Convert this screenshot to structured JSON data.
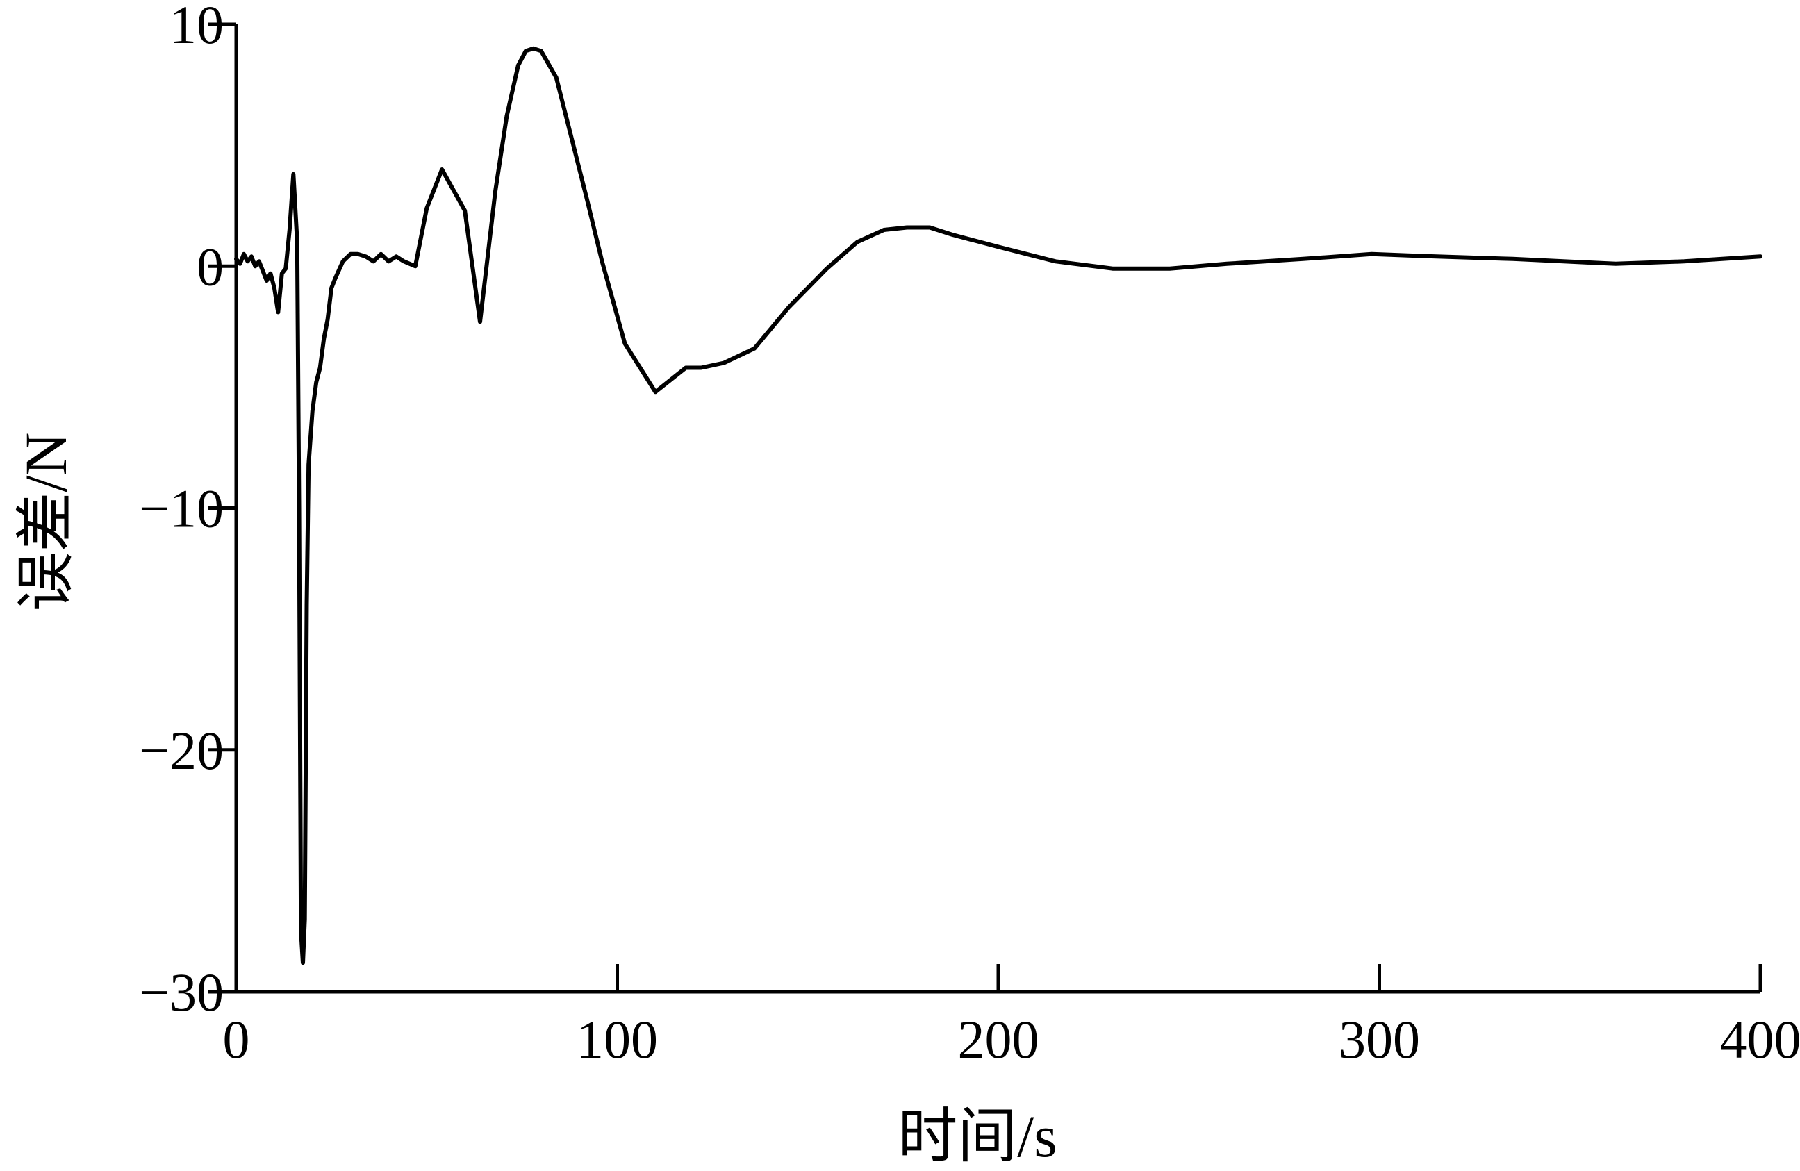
{
  "chart_data": {
    "type": "line",
    "title": "",
    "xlabel": "时间/s",
    "ylabel": "误差/N",
    "xlim": [
      0,
      400
    ],
    "ylim": [
      -30,
      10
    ],
    "x_ticks": [
      0,
      100,
      200,
      300,
      400
    ],
    "y_ticks": [
      -30,
      -20,
      -10,
      0,
      10
    ],
    "x_tick_labels": [
      "0",
      "100",
      "200",
      "300",
      "400"
    ],
    "y_tick_labels": [
      "−30",
      "−20",
      "−10",
      "0",
      "10"
    ],
    "grid": false,
    "line_color": "#000000",
    "series": [
      {
        "x": [
          0,
          1,
          2,
          3,
          4,
          5,
          6,
          7,
          8,
          9,
          10,
          11,
          12,
          13,
          14,
          15,
          16,
          16.5,
          17,
          17.5,
          18,
          18.5,
          19,
          20,
          21,
          22,
          23,
          24,
          25,
          26,
          28,
          30,
          32,
          34,
          36,
          38,
          40,
          42,
          44,
          47,
          50,
          54,
          60,
          64,
          68,
          71,
          74,
          76,
          78,
          80,
          84,
          88,
          92,
          96,
          102,
          110,
          118,
          122,
          128,
          136,
          145,
          155,
          163,
          170,
          176,
          182,
          188,
          200,
          215,
          230,
          245,
          260,
          280,
          298,
          315,
          335,
          362,
          380,
          400
        ],
        "y": [
          0.3,
          0.1,
          0.5,
          0.2,
          0.4,
          0.0,
          0.2,
          -0.2,
          -0.6,
          -0.3,
          -0.9,
          -1.9,
          -0.3,
          -0.1,
          1.5,
          3.8,
          1.0,
          -10.0,
          -27.5,
          -28.8,
          -27.0,
          -14.0,
          -8.2,
          -6.0,
          -4.8,
          -4.2,
          -3.0,
          -2.2,
          -0.9,
          -0.5,
          0.2,
          0.5,
          0.5,
          0.4,
          0.2,
          0.5,
          0.2,
          0.4,
          0.2,
          0.0,
          2.4,
          4.0,
          2.3,
          -2.3,
          3.1,
          6.2,
          8.3,
          8.9,
          9.0,
          8.9,
          7.8,
          5.3,
          2.8,
          0.2,
          -3.2,
          -5.2,
          -4.2,
          -4.2,
          -4.0,
          -3.4,
          -1.7,
          -0.1,
          1.0,
          1.5,
          1.6,
          1.6,
          1.3,
          0.8,
          0.2,
          -0.1,
          -0.1,
          0.1,
          0.3,
          0.5,
          0.4,
          0.3,
          0.1,
          0.2,
          0.4
        ]
      }
    ]
  }
}
